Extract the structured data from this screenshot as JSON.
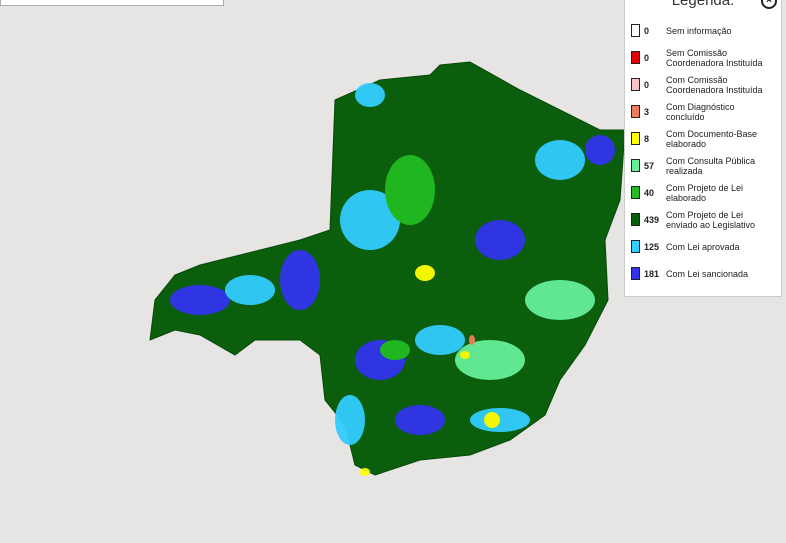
{
  "legend": {
    "title": "Legenda:",
    "items": [
      {
        "count": 0,
        "label": "Sem informação",
        "color": "#ffffff"
      },
      {
        "count": 0,
        "label": "Sem Comissão Coordenadora Instituída",
        "color": "#e00000"
      },
      {
        "count": 0,
        "label": "Com Comissão Coordenadora Instituída",
        "color": "#f6c4c4"
      },
      {
        "count": 3,
        "label": "Com Diagnóstico concluído",
        "color": "#f07c5c"
      },
      {
        "count": 8,
        "label": "Com Documento-Base elaborado",
        "color": "#ffff00"
      },
      {
        "count": 57,
        "label": "Com Consulta Pública realizada",
        "color": "#66ee99"
      },
      {
        "count": 40,
        "label": "Com Projeto de Lei elaborado",
        "color": "#22bb22"
      },
      {
        "count": 439,
        "label": "Com Projeto de Lei enviado ao Legislativo",
        "color": "#0b5e0b"
      },
      {
        "count": 125,
        "label": "Com Lei aprovada",
        "color": "#33ccff"
      },
      {
        "count": 181,
        "label": "Com Lei sancionada",
        "color": "#3333ee"
      }
    ]
  }
}
